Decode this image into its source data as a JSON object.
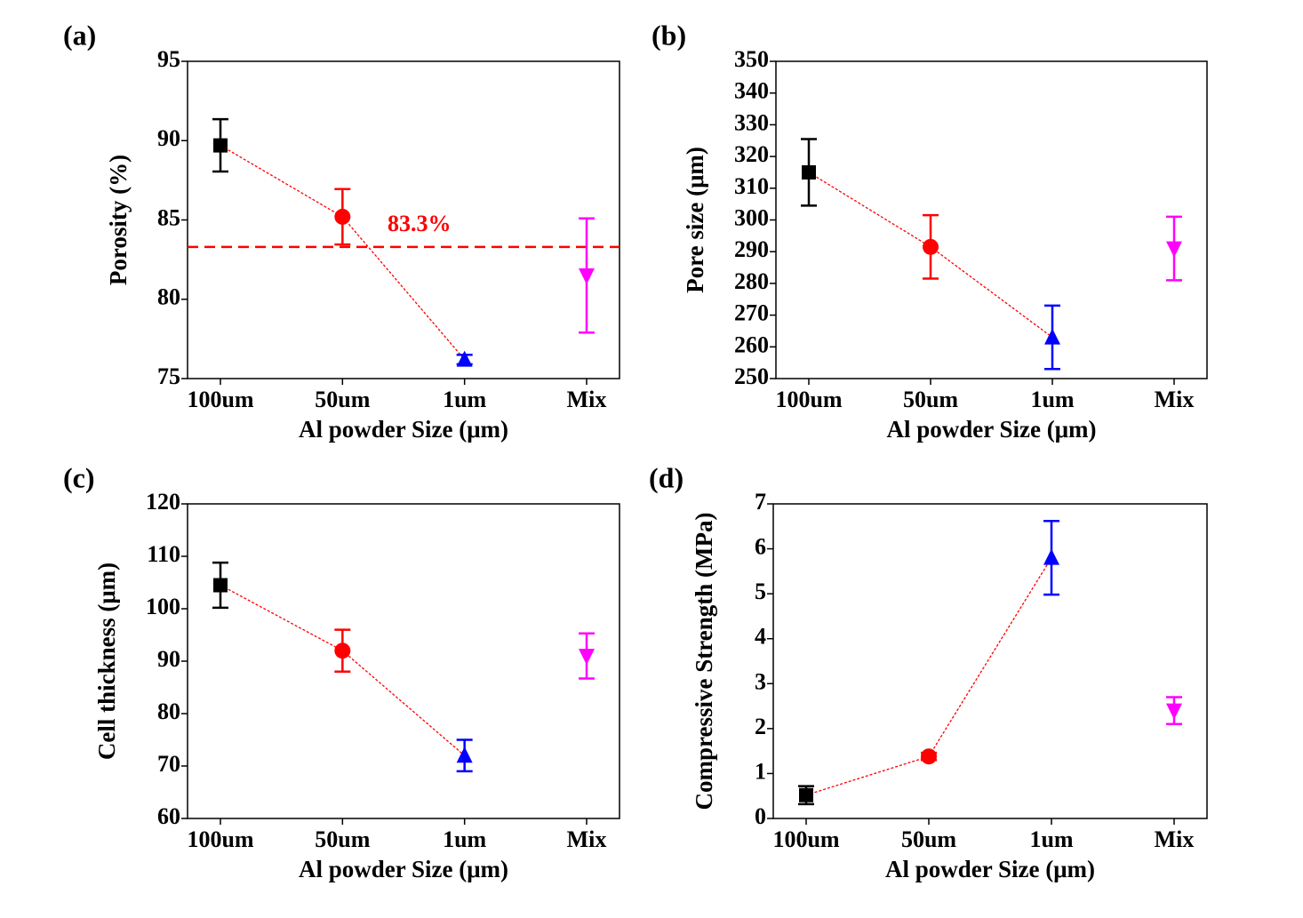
{
  "chart_data": [
    {
      "type": "errorbar-line",
      "panel_label": "(a)",
      "xlabel": "Al powder Size (μm)",
      "ylabel": "Porosity (%)",
      "categories": [
        "100um",
        "50um",
        "1um",
        "Mix"
      ],
      "values": [
        89.7,
        85.2,
        76.2,
        81.5
      ],
      "errors": [
        1.65,
        1.75,
        0.3,
        3.6
      ],
      "colors": [
        "#000000",
        "#ff0000",
        "#0000ff",
        "#ff00ff"
      ],
      "markers": [
        "square",
        "circle",
        "triangle-up",
        "triangle-down"
      ],
      "connected": [
        true,
        true,
        true,
        false
      ],
      "line_color": "#ff0000",
      "ylim": [
        75,
        95
      ],
      "yticks": [
        75,
        80,
        85,
        90,
        95
      ],
      "reference_line": {
        "value": 83.3,
        "label": "83.3%",
        "color": "#ff0000"
      }
    },
    {
      "type": "errorbar-line",
      "panel_label": "(b)",
      "xlabel": "Al powder Size (μm)",
      "ylabel": "Pore size (μm)",
      "categories": [
        "100um",
        "50um",
        "1um",
        "Mix"
      ],
      "values": [
        315,
        291.5,
        263,
        291
      ],
      "errors": [
        10.5,
        10,
        10,
        10
      ],
      "colors": [
        "#000000",
        "#ff0000",
        "#0000ff",
        "#ff00ff"
      ],
      "markers": [
        "square",
        "circle",
        "triangle-up",
        "triangle-down"
      ],
      "connected": [
        true,
        true,
        true,
        false
      ],
      "line_color": "#ff0000",
      "ylim": [
        250,
        350
      ],
      "yticks": [
        250,
        260,
        270,
        280,
        290,
        300,
        310,
        320,
        330,
        340,
        350
      ]
    },
    {
      "type": "errorbar-line",
      "panel_label": "(c)",
      "xlabel": "Al powder Size (μm)",
      "ylabel": "Cell thickness (μm)",
      "categories": [
        "100um",
        "50um",
        "1um",
        "Mix"
      ],
      "values": [
        104.5,
        92,
        72,
        91
      ],
      "errors": [
        4.3,
        4,
        3,
        4.3
      ],
      "colors": [
        "#000000",
        "#ff0000",
        "#0000ff",
        "#ff00ff"
      ],
      "markers": [
        "square",
        "circle",
        "triangle-up",
        "triangle-down"
      ],
      "connected": [
        true,
        true,
        true,
        false
      ],
      "line_color": "#ff0000",
      "ylim": [
        60,
        120
      ],
      "yticks": [
        60,
        70,
        80,
        90,
        100,
        110,
        120
      ]
    },
    {
      "type": "errorbar-line",
      "panel_label": "(d)",
      "xlabel": "Al powder Size (μm)",
      "ylabel": "Compressive Strength (MPa)",
      "categories": [
        "100um",
        "50um",
        "1um",
        "Mix"
      ],
      "values": [
        0.52,
        1.38,
        5.8,
        2.4
      ],
      "errors": [
        0.2,
        0.08,
        0.82,
        0.3
      ],
      "colors": [
        "#000000",
        "#ff0000",
        "#0000ff",
        "#ff00ff"
      ],
      "markers": [
        "square",
        "circle",
        "triangle-up",
        "triangle-down"
      ],
      "connected": [
        true,
        true,
        true,
        false
      ],
      "line_color": "#ff0000",
      "ylim": [
        0,
        7
      ],
      "yticks": [
        0,
        1,
        2,
        3,
        4,
        5,
        6,
        7
      ]
    }
  ]
}
